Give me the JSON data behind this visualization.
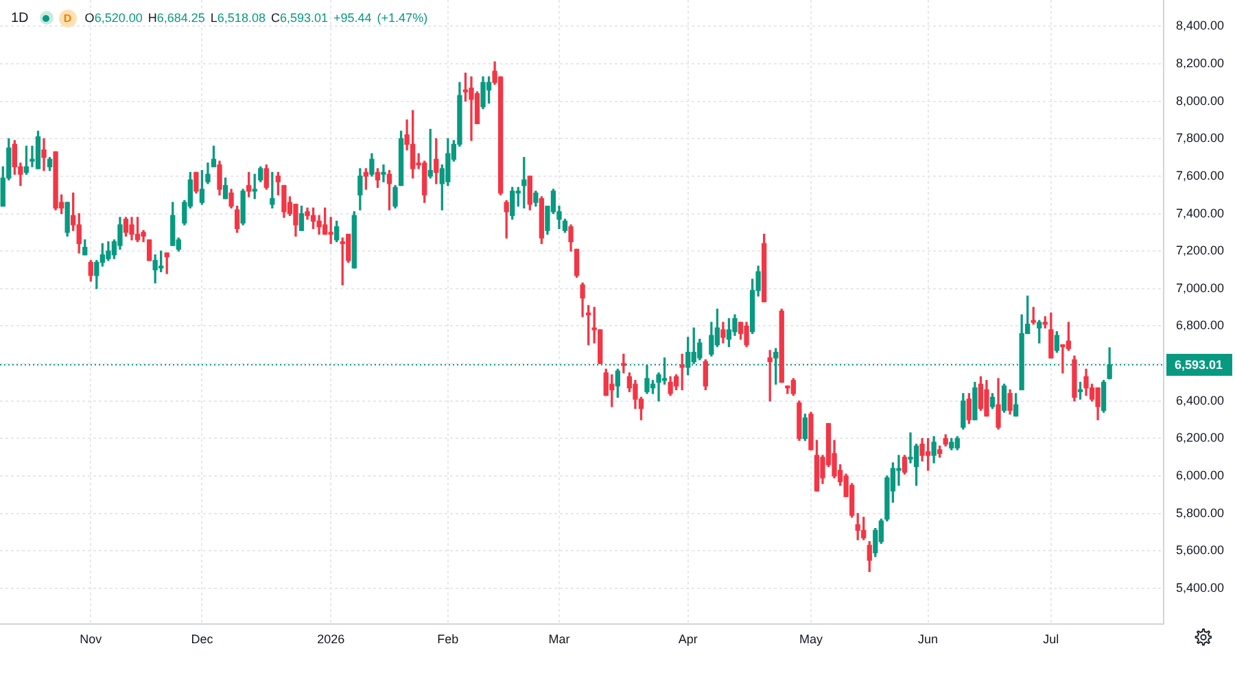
{
  "chart_data": {
    "type": "candlestick",
    "title": "1D",
    "subtitle": "O6,520.00 H6,684.25 L6,518.08 C6,593.01 +95.44 (+1.47%)",
    "annotations": [
      "D"
    ],
    "categories": [
      null,
      null,
      null,
      null,
      null,
      null,
      null,
      null,
      null,
      null,
      null,
      null,
      null,
      null,
      null,
      "Nov",
      null,
      null,
      null,
      null,
      null,
      null,
      null,
      null,
      null,
      null,
      null,
      null,
      null,
      null,
      null,
      null,
      null,
      null,
      "Dec",
      null,
      null,
      null,
      null,
      null,
      null,
      null,
      null,
      null,
      null,
      null,
      null,
      null,
      null,
      null,
      null,
      null,
      null,
      null,
      null,
      null,
      "2026",
      null,
      null,
      null,
      null,
      null,
      null,
      null,
      null,
      null,
      null,
      null,
      null,
      null,
      null,
      null,
      null,
      null,
      null,
      null,
      "Feb",
      null,
      null,
      null,
      null,
      null,
      null,
      null,
      null,
      null,
      null,
      null,
      null,
      null,
      null,
      null,
      null,
      null,
      null,
      "Mar",
      null,
      null,
      null,
      null,
      null,
      null,
      null,
      null,
      null,
      null,
      null,
      null,
      null,
      null,
      null,
      null,
      null,
      null,
      null,
      null,
      null,
      "Apr",
      null,
      null,
      null,
      null,
      null,
      null,
      null,
      null,
      null,
      null,
      null,
      null,
      null,
      null,
      null,
      null,
      null,
      null,
      null,
      null,
      "May",
      null,
      null,
      null,
      null,
      null,
      null,
      null,
      null,
      null,
      null,
      null,
      null,
      null,
      null,
      null,
      null,
      null,
      null,
      null,
      "Jun",
      null,
      null,
      null,
      null,
      null,
      null,
      null,
      null,
      null,
      null,
      null,
      null,
      null,
      null,
      null,
      null,
      null,
      null,
      null,
      null,
      "Jul",
      null,
      null,
      null,
      null,
      null,
      null,
      null,
      null,
      null,
      null
    ],
    "ohlc": [
      [
        7440,
        7650,
        7440,
        7590
      ],
      [
        7590,
        7800,
        7580,
        7750
      ],
      [
        7770,
        7790,
        7610,
        7650
      ],
      [
        7650,
        7670,
        7550,
        7610
      ],
      [
        7620,
        7760,
        7610,
        7650
      ],
      [
        7680,
        7760,
        7650,
        7690
      ],
      [
        7640,
        7840,
        7640,
        7810
      ],
      [
        7740,
        7800,
        7630,
        7700
      ],
      [
        7650,
        7700,
        7630,
        7690
      ],
      [
        7730,
        7730,
        7420,
        7430
      ],
      [
        7460,
        7500,
        7400,
        7430
      ],
      [
        7300,
        7460,
        7280,
        7460
      ],
      [
        7390,
        7510,
        7310,
        7340
      ],
      [
        7340,
        7400,
        7190,
        7240
      ],
      [
        7180,
        7260,
        7180,
        7220
      ],
      [
        7140,
        7150,
        7040,
        7070
      ],
      [
        7070,
        7150,
        7000,
        7140
      ],
      [
        7140,
        7240,
        7120,
        7180
      ],
      [
        7160,
        7250,
        7150,
        7200
      ],
      [
        7180,
        7260,
        7160,
        7250
      ],
      [
        7230,
        7380,
        7210,
        7340
      ],
      [
        7370,
        7380,
        7280,
        7300
      ],
      [
        7340,
        7380,
        7260,
        7290
      ],
      [
        7290,
        7380,
        7250,
        7260
      ],
      [
        7300,
        7310,
        7250,
        7280
      ],
      [
        7260,
        7260,
        7150,
        7150
      ],
      [
        7100,
        7180,
        7030,
        7150
      ],
      [
        7110,
        7200,
        7090,
        7120
      ],
      [
        7190,
        7190,
        7080,
        7170
      ],
      [
        7230,
        7460,
        7230,
        7390
      ],
      [
        7210,
        7270,
        7200,
        7260
      ],
      [
        7350,
        7470,
        7340,
        7460
      ],
      [
        7440,
        7620,
        7430,
        7580
      ],
      [
        7620,
        7620,
        7510,
        7520
      ],
      [
        7460,
        7630,
        7450,
        7530
      ],
      [
        7570,
        7670,
        7560,
        7610
      ],
      [
        7650,
        7760,
        7650,
        7690
      ],
      [
        7660,
        7680,
        7500,
        7530
      ],
      [
        7480,
        7590,
        7480,
        7550
      ],
      [
        7510,
        7530,
        7430,
        7440
      ],
      [
        7420,
        7440,
        7300,
        7320
      ],
      [
        7350,
        7530,
        7340,
        7520
      ],
      [
        7550,
        7620,
        7490,
        7520
      ],
      [
        7520,
        7610,
        7480,
        7530
      ],
      [
        7580,
        7650,
        7570,
        7640
      ],
      [
        7640,
        7660,
        7530,
        7540
      ],
      [
        7450,
        7620,
        7430,
        7480
      ],
      [
        7600,
        7620,
        7500,
        7570
      ],
      [
        7550,
        7550,
        7380,
        7410
      ],
      [
        7460,
        7490,
        7390,
        7400
      ],
      [
        7450,
        7450,
        7280,
        7340
      ],
      [
        7310,
        7440,
        7310,
        7400
      ],
      [
        7410,
        7430,
        7370,
        7390
      ],
      [
        7390,
        7430,
        7320,
        7360
      ],
      [
        7360,
        7390,
        7290,
        7330
      ],
      [
        7340,
        7430,
        7290,
        7290
      ],
      [
        7300,
        7380,
        7240,
        7290
      ],
      [
        7260,
        7360,
        7250,
        7330
      ],
      [
        7250,
        7270,
        7020,
        7240
      ],
      [
        7290,
        7290,
        7140,
        7150
      ],
      [
        7110,
        7410,
        7110,
        7390
      ],
      [
        7500,
        7640,
        7420,
        7600
      ],
      [
        7620,
        7640,
        7530,
        7600
      ],
      [
        7610,
        7720,
        7600,
        7690
      ],
      [
        7620,
        7640,
        7540,
        7580
      ],
      [
        7610,
        7660,
        7570,
        7620
      ],
      [
        7610,
        7630,
        7420,
        7560
      ],
      [
        7440,
        7550,
        7430,
        7540
      ],
      [
        7550,
        7840,
        7550,
        7800
      ],
      [
        7820,
        7900,
        7740,
        7770
      ],
      [
        7770,
        7950,
        7590,
        7640
      ],
      [
        7670,
        7720,
        7640,
        7660
      ],
      [
        7670,
        7680,
        7460,
        7500
      ],
      [
        7600,
        7850,
        7590,
        7630
      ],
      [
        7690,
        7800,
        7560,
        7620
      ],
      [
        7560,
        7660,
        7420,
        7640
      ],
      [
        7570,
        7800,
        7550,
        7720
      ],
      [
        7690,
        7790,
        7680,
        7770
      ],
      [
        7770,
        8100,
        7760,
        8030
      ],
      [
        8060,
        8150,
        8000,
        8050
      ],
      [
        8070,
        8130,
        7790,
        8010
      ],
      [
        8040,
        8050,
        7880,
        7880
      ],
      [
        7970,
        8130,
        7960,
        8100
      ],
      [
        8060,
        8130,
        7990,
        8100
      ],
      [
        8160,
        8210,
        8090,
        8100
      ],
      [
        8130,
        8130,
        7500,
        7510
      ],
      [
        7460,
        7470,
        7270,
        7410
      ],
      [
        7390,
        7540,
        7370,
        7520
      ],
      [
        7510,
        7540,
        7440,
        7520
      ],
      [
        7550,
        7700,
        7430,
        7580
      ],
      [
        7600,
        7600,
        7420,
        7450
      ],
      [
        7460,
        7520,
        7440,
        7510
      ],
      [
        7480,
        7490,
        7240,
        7270
      ],
      [
        7310,
        7440,
        7290,
        7440
      ],
      [
        7410,
        7530,
        7400,
        7520
      ],
      [
        7370,
        7440,
        7320,
        7410
      ],
      [
        7310,
        7370,
        7300,
        7360
      ],
      [
        7330,
        7340,
        7200,
        7250
      ],
      [
        7210,
        7210,
        7060,
        7070
      ],
      [
        7020,
        7030,
        6850,
        6950
      ],
      [
        6870,
        6910,
        6700,
        6860
      ],
      [
        6790,
        6900,
        6710,
        6780
      ],
      [
        6780,
        6780,
        6600,
        6600
      ],
      [
        6550,
        6570,
        6430,
        6430
      ],
      [
        6490,
        6540,
        6370,
        6460
      ],
      [
        6480,
        6570,
        6420,
        6560
      ],
      [
        6600,
        6650,
        6550,
        6590
      ],
      [
        6530,
        6550,
        6450,
        6470
      ],
      [
        6490,
        6510,
        6360,
        6410
      ],
      [
        6410,
        6420,
        6300,
        6360
      ],
      [
        6450,
        6590,
        6440,
        6520
      ],
      [
        6470,
        6510,
        6440,
        6490
      ],
      [
        6500,
        6550,
        6400,
        6540
      ],
      [
        6510,
        6630,
        6490,
        6520
      ],
      [
        6500,
        6530,
        6430,
        6440
      ],
      [
        6530,
        6540,
        6460,
        6480
      ],
      [
        6590,
        6650,
        6460,
        6580
      ],
      [
        6580,
        6740,
        6540,
        6660
      ],
      [
        6610,
        6790,
        6600,
        6660
      ],
      [
        6630,
        6730,
        6620,
        6710
      ],
      [
        6610,
        6620,
        6460,
        6480
      ],
      [
        6650,
        6820,
        6640,
        6750
      ],
      [
        6700,
        6890,
        6690,
        6790
      ],
      [
        6780,
        6820,
        6710,
        6740
      ],
      [
        6730,
        6840,
        6690,
        6780
      ],
      [
        6770,
        6860,
        6750,
        6840
      ],
      [
        6820,
        6820,
        6730,
        6760
      ],
      [
        6800,
        6820,
        6690,
        6700
      ],
      [
        6770,
        7050,
        6760,
        6990
      ],
      [
        6990,
        7120,
        6960,
        7090
      ],
      [
        7240,
        7290,
        6930,
        6930
      ],
      [
        6630,
        6670,
        6400,
        6610
      ],
      [
        6630,
        6680,
        6490,
        6660
      ],
      [
        6880,
        6890,
        6500,
        6500
      ],
      [
        6480,
        6480,
        6440,
        6470
      ],
      [
        6510,
        6520,
        6430,
        6440
      ],
      [
        6390,
        6400,
        6190,
        6200
      ],
      [
        6200,
        6330,
        6190,
        6310
      ],
      [
        6330,
        6340,
        6140,
        6140
      ],
      [
        6110,
        6190,
        5920,
        5920
      ],
      [
        6100,
        6110,
        5960,
        5990
      ],
      [
        6280,
        6280,
        6050,
        6060
      ],
      [
        6120,
        6190,
        5990,
        6000
      ],
      [
        6030,
        6060,
        5950,
        5970
      ],
      [
        6000,
        6010,
        5890,
        5890
      ],
      [
        5950,
        5960,
        5780,
        5790
      ],
      [
        5740,
        5800,
        5660,
        5710
      ],
      [
        5710,
        5780,
        5660,
        5670
      ],
      [
        5630,
        5650,
        5490,
        5550
      ],
      [
        5590,
        5720,
        5570,
        5710
      ],
      [
        5650,
        5770,
        5640,
        5760
      ],
      [
        5770,
        6000,
        5760,
        5990
      ],
      [
        5920,
        6070,
        5860,
        6040
      ],
      [
        6030,
        6110,
        5950,
        6040
      ],
      [
        6100,
        6110,
        6010,
        6020
      ],
      [
        6090,
        6230,
        6070,
        6100
      ],
      [
        6050,
        6170,
        5950,
        6160
      ],
      [
        6170,
        6200,
        6080,
        6110
      ],
      [
        6130,
        6200,
        6030,
        6110
      ],
      [
        6110,
        6210,
        6070,
        6180
      ],
      [
        6140,
        6160,
        6100,
        6120
      ],
      [
        6200,
        6220,
        6160,
        6170
      ],
      [
        6150,
        6200,
        6140,
        6180
      ],
      [
        6150,
        6210,
        6140,
        6200
      ],
      [
        6260,
        6440,
        6250,
        6400
      ],
      [
        6410,
        6440,
        6280,
        6300
      ],
      [
        6300,
        6500,
        6300,
        6470
      ],
      [
        6490,
        6530,
        6350,
        6360
      ],
      [
        6460,
        6510,
        6320,
        6320
      ],
      [
        6370,
        6440,
        6360,
        6420
      ],
      [
        6380,
        6520,
        6250,
        6260
      ],
      [
        6350,
        6490,
        6340,
        6480
      ],
      [
        6440,
        6460,
        6330,
        6350
      ],
      [
        6320,
        6440,
        6320,
        6380
      ],
      [
        6460,
        6860,
        6460,
        6760
      ],
      [
        6760,
        6960,
        6760,
        6810
      ],
      [
        6830,
        6900,
        6810,
        6820
      ],
      [
        6790,
        6830,
        6710,
        6820
      ],
      [
        6820,
        6850,
        6790,
        6810
      ],
      [
        6780,
        6870,
        6630,
        6630
      ],
      [
        6670,
        6770,
        6660,
        6750
      ],
      [
        6700,
        6700,
        6550,
        6690
      ],
      [
        6720,
        6820,
        6670,
        6680
      ],
      [
        6620,
        6640,
        6400,
        6420
      ],
      [
        6450,
        6500,
        6410,
        6460
      ],
      [
        6530,
        6570,
        6430,
        6470
      ],
      [
        6470,
        6490,
        6400,
        6410
      ],
      [
        6470,
        6470,
        6300,
        6370
      ],
      [
        6350,
        6510,
        6340,
        6500
      ],
      [
        6520,
        6684.25,
        6518.08,
        6593.01
      ]
    ],
    "colors": [
      "#089981",
      "#089981",
      "#f23645",
      "#f23645",
      "#089981",
      "#089981",
      "#089981",
      "#f23645",
      "#089981",
      "#f23645",
      "#f23645",
      "#089981",
      "#f23645",
      "#f23645",
      "#089981",
      "#f23645",
      "#089981",
      "#089981",
      "#089981",
      "#089981",
      "#089981",
      "#f23645",
      "#f23645",
      "#f23645",
      "#f23645",
      "#f23645",
      "#089981",
      "#089981",
      "#f23645",
      "#089981",
      "#089981",
      "#089981",
      "#089981",
      "#f23645",
      "#089981",
      "#089981",
      "#089981",
      "#f23645",
      "#089981",
      "#f23645",
      "#f23645",
      "#089981",
      "#f23645",
      "#089981",
      "#089981",
      "#f23645",
      "#089981",
      "#f23645",
      "#f23645",
      "#f23645",
      "#f23645",
      "#089981",
      "#f23645",
      "#f23645",
      "#f23645",
      "#f23645",
      "#f23645",
      "#089981",
      "#f23645",
      "#f23645",
      "#089981",
      "#089981",
      "#f23645",
      "#089981",
      "#f23645",
      "#089981",
      "#f23645",
      "#089981",
      "#089981",
      "#f23645",
      "#f23645",
      "#f23645",
      "#f23645",
      "#089981",
      "#f23645",
      "#089981",
      "#089981",
      "#089981",
      "#089981",
      "#f23645",
      "#f23645",
      "#f23645",
      "#089981",
      "#089981",
      "#f23645",
      "#f23645",
      "#f23645",
      "#089981",
      "#089981",
      "#089981",
      "#f23645",
      "#089981",
      "#f23645",
      "#089981",
      "#089981",
      "#089981",
      "#089981",
      "#f23645",
      "#f23645",
      "#f23645",
      "#f23645",
      "#f23645",
      "#f23645",
      "#f23645",
      "#f23645",
      "#089981",
      "#f23645",
      "#f23645",
      "#f23645",
      "#f23645",
      "#089981",
      "#089981",
      "#089981",
      "#089981",
      "#f23645",
      "#f23645",
      "#f23645",
      "#089981",
      "#089981",
      "#089981",
      "#f23645",
      "#089981",
      "#089981",
      "#f23645",
      "#089981",
      "#089981",
      "#f23645",
      "#f23645",
      "#089981",
      "#089981",
      "#f23645",
      "#f23645",
      "#089981",
      "#f23645",
      "#f23645",
      "#f23645",
      "#f23645",
      "#089981",
      "#f23645",
      "#f23645",
      "#f23645",
      "#f23645",
      "#f23645",
      "#f23645",
      "#f23645",
      "#f23645",
      "#f23645",
      "#f23645",
      "#f23645",
      "#089981",
      "#089981",
      "#089981",
      "#089981",
      "#089981",
      "#f23645",
      "#089981",
      "#089981",
      "#f23645",
      "#f23645",
      "#089981",
      "#f23645",
      "#f23645",
      "#089981",
      "#089981",
      "#089981",
      "#f23645",
      "#089981",
      "#f23645",
      "#f23645",
      "#089981",
      "#f23645",
      "#089981",
      "#f23645",
      "#089981",
      "#089981",
      "#089981",
      "#f23645",
      "#089981",
      "#f23645",
      "#f23645",
      "#089981",
      "#f23645",
      "#f23645",
      "#f23645",
      "#089981",
      "#f23645",
      "#f23645",
      "#f23645",
      "#089981",
      "#089981"
    ],
    "ylim": [
      5210,
      8540
    ],
    "yticks": [
      {
        "value": 5400,
        "label": "5,400.00"
      },
      {
        "value": 5600,
        "label": "5,600.00"
      },
      {
        "value": 5800,
        "label": "5,800.00"
      },
      {
        "value": 6000,
        "label": "6,000.00"
      },
      {
        "value": 6200,
        "label": "6,200.00"
      },
      {
        "value": 6400,
        "label": "6,400.00"
      },
      {
        "value": 6600,
        "label": null
      },
      {
        "value": 6800,
        "label": "6,800.00"
      },
      {
        "value": 7000,
        "label": "7,000.00"
      },
      {
        "value": 7200,
        "label": "7,200.00"
      },
      {
        "value": 7400,
        "label": "7,400.00"
      },
      {
        "value": 7600,
        "label": "7,600.00"
      },
      {
        "value": 7800,
        "label": "7,800.00"
      },
      {
        "value": 8000,
        "label": "8,000.00"
      },
      {
        "value": 8200,
        "label": "8,200.00"
      },
      {
        "value": 8400,
        "label": "8,400.00"
      }
    ],
    "grid": true,
    "ref_lines": [
      {
        "axis": "y",
        "value": 6593.01,
        "label": "6,593.01",
        "color": "#089981",
        "line_style": "dotted"
      }
    ]
  }
}
